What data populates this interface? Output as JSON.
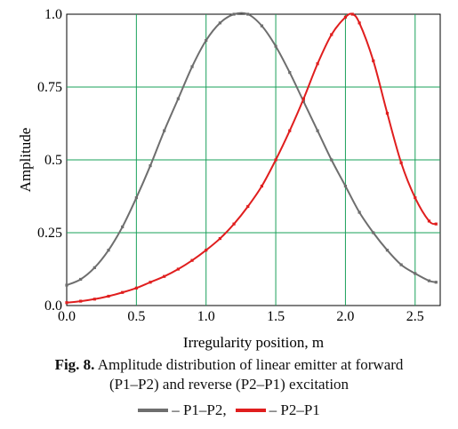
{
  "chart_data": {
    "type": "line",
    "xlabel": "Irregularity position, m",
    "ylabel": "Amplitude",
    "xlim": [
      0,
      2.68
    ],
    "ylim": [
      0,
      1.0
    ],
    "x_ticks": [
      "0.0",
      "0.5",
      "1.0",
      "1.5",
      "2.0",
      "2.5"
    ],
    "y_ticks": [
      "0.0",
      "0.25",
      "0.5",
      "0.75",
      "1.0"
    ],
    "grid": true,
    "series": [
      {
        "name": "P1–P2",
        "color": "#6e6e6e",
        "x": [
          0.0,
          0.1,
          0.2,
          0.3,
          0.4,
          0.5,
          0.6,
          0.7,
          0.8,
          0.9,
          1.0,
          1.1,
          1.2,
          1.3,
          1.4,
          1.5,
          1.6,
          1.7,
          1.8,
          1.9,
          2.0,
          2.1,
          2.2,
          2.3,
          2.4,
          2.5,
          2.6,
          2.65
        ],
        "y": [
          0.07,
          0.09,
          0.13,
          0.19,
          0.27,
          0.37,
          0.48,
          0.6,
          0.71,
          0.82,
          0.91,
          0.97,
          1.0,
          1.0,
          0.96,
          0.89,
          0.8,
          0.7,
          0.6,
          0.5,
          0.41,
          0.32,
          0.25,
          0.19,
          0.14,
          0.11,
          0.085,
          0.08
        ]
      },
      {
        "name": "P2–P1",
        "color": "#e01e1e",
        "x": [
          0.0,
          0.1,
          0.2,
          0.3,
          0.4,
          0.5,
          0.6,
          0.7,
          0.8,
          0.9,
          1.0,
          1.1,
          1.2,
          1.3,
          1.4,
          1.5,
          1.6,
          1.7,
          1.8,
          1.9,
          2.0,
          2.05,
          2.1,
          2.2,
          2.3,
          2.4,
          2.5,
          2.6,
          2.65
        ],
        "y": [
          0.01,
          0.015,
          0.022,
          0.032,
          0.045,
          0.06,
          0.08,
          0.1,
          0.125,
          0.155,
          0.19,
          0.23,
          0.28,
          0.34,
          0.41,
          0.5,
          0.6,
          0.71,
          0.83,
          0.93,
          0.99,
          1.0,
          0.97,
          0.84,
          0.66,
          0.49,
          0.37,
          0.29,
          0.28
        ]
      }
    ]
  },
  "caption": {
    "fig_label": "Fig. 8.",
    "line1": "Amplitude distribution of linear emitter at forward",
    "line2": "(P1–P2) and reverse (P2–P1) excitation"
  },
  "legend": {
    "p1p2_label": "– P1–P2,",
    "p2p1_label": "– P2–P1"
  }
}
